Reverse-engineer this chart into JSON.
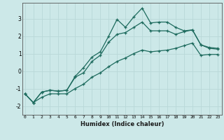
{
  "xlabel": "Humidex (Indice chaleur)",
  "background_color": "#cce8e8",
  "grid_color": "#b8d8d8",
  "line_color": "#1e6b5e",
  "x_ticks": [
    0,
    1,
    2,
    3,
    4,
    5,
    6,
    7,
    8,
    9,
    10,
    11,
    12,
    13,
    14,
    15,
    16,
    17,
    18,
    19,
    20,
    21,
    22,
    23
  ],
  "y_ticks": [
    -2,
    -1,
    0,
    1,
    2,
    3
  ],
  "ylim": [
    -2.5,
    3.9
  ],
  "xlim": [
    -0.3,
    23.5
  ],
  "line1_x": [
    0,
    1,
    2,
    3,
    4,
    5,
    6,
    7,
    8,
    9,
    10,
    11,
    12,
    13,
    14,
    15,
    16,
    17,
    18,
    19,
    20,
    21,
    22,
    23
  ],
  "line1_y": [
    -1.3,
    -1.8,
    -1.2,
    -1.1,
    -1.15,
    -1.1,
    -0.3,
    0.2,
    0.8,
    1.1,
    2.0,
    2.95,
    2.5,
    3.1,
    3.6,
    2.75,
    2.8,
    2.8,
    2.5,
    2.3,
    2.35,
    1.5,
    1.35,
    1.3
  ],
  "line2_x": [
    0,
    1,
    2,
    3,
    4,
    5,
    6,
    7,
    8,
    9,
    10,
    11,
    12,
    13,
    14,
    15,
    16,
    17,
    18,
    19,
    20,
    21,
    22,
    23
  ],
  "line2_y": [
    -1.3,
    -1.8,
    -1.2,
    -1.1,
    -1.15,
    -1.1,
    -0.35,
    -0.1,
    0.55,
    0.9,
    1.65,
    2.1,
    2.2,
    2.5,
    2.8,
    2.3,
    2.3,
    2.3,
    2.1,
    2.25,
    2.35,
    1.5,
    1.3,
    1.25
  ],
  "line3_x": [
    0,
    1,
    2,
    3,
    4,
    5,
    6,
    7,
    8,
    9,
    10,
    11,
    12,
    13,
    14,
    15,
    16,
    17,
    18,
    19,
    20,
    21,
    22,
    23
  ],
  "line3_y": [
    -1.3,
    -1.8,
    -1.5,
    -1.3,
    -1.3,
    -1.3,
    -1.0,
    -0.75,
    -0.35,
    -0.1,
    0.25,
    0.55,
    0.75,
    1.0,
    1.2,
    1.1,
    1.15,
    1.2,
    1.3,
    1.45,
    1.6,
    0.9,
    0.95,
    0.95
  ]
}
